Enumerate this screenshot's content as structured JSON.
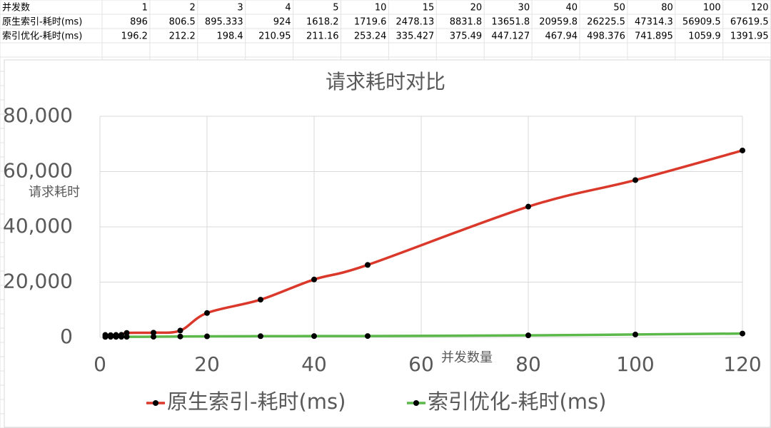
{
  "table": {
    "rows": [
      [
        "并发数",
        1,
        2,
        3,
        4,
        5,
        10,
        15,
        20,
        30,
        40,
        50,
        80,
        100,
        120
      ],
      [
        "原生索引-耗时(ms)",
        896,
        806.5,
        895.333,
        924,
        1618.2,
        1719.6,
        2478.13,
        8831.8,
        13651.8,
        20959.8,
        26225.5,
        47314.3,
        56909.5,
        67619.5
      ],
      [
        "索引优化-耗时(ms)",
        196.2,
        212.2,
        198.4,
        210.95,
        211.16,
        253.24,
        335.427,
        375.49,
        447.127,
        467.94,
        498.376,
        741.895,
        1059.9,
        1391.95
      ]
    ]
  },
  "chart_data": {
    "type": "line",
    "title": "请求耗时对比",
    "y_label": "请求耗时",
    "x_label": "并发数量",
    "x": [
      1,
      2,
      3,
      4,
      5,
      10,
      15,
      20,
      30,
      40,
      50,
      80,
      100,
      120
    ],
    "series": [
      {
        "name": "原生索引-耗时(ms)",
        "color": "#d9382a",
        "values": [
          896,
          806.5,
          895.333,
          924,
          1618.2,
          1719.6,
          2478.13,
          8831.8,
          13651.8,
          20959.8,
          26225.5,
          47314.3,
          56909.5,
          67619.5
        ]
      },
      {
        "name": "索引优化-耗时(ms)",
        "color": "#5cb84a",
        "values": [
          196.2,
          212.2,
          198.4,
          210.95,
          211.16,
          253.24,
          335.427,
          375.49,
          447.127,
          467.94,
          498.376,
          741.895,
          1059.9,
          1391.95
        ]
      }
    ],
    "xlim": [
      0,
      120
    ],
    "xticks": [
      0,
      20,
      40,
      60,
      80,
      100,
      120
    ],
    "ylim": [
      0,
      80000
    ],
    "yticks": [
      0,
      {
        "value": 20000,
        "label": "20,000"
      },
      {
        "value": 40000,
        "label": "40,000"
      },
      {
        "value": 60000,
        "label": "60,000"
      },
      {
        "value": 80000,
        "label": "80,000"
      }
    ],
    "grid": true,
    "smooth": true,
    "legend": "bottom"
  }
}
